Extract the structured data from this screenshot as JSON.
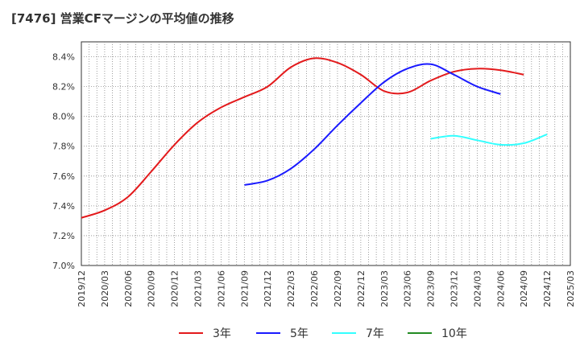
{
  "chart_data": {
    "type": "line",
    "title": "[7476]  営業CFマージンの平均値の推移",
    "xlabel": "",
    "ylabel": "",
    "ylim": [
      7.0,
      8.5
    ],
    "y_ticks": [
      "7.0%",
      "7.2%",
      "7.4%",
      "7.6%",
      "7.8%",
      "8.0%",
      "8.2%",
      "8.4%"
    ],
    "y_tick_values": [
      7.0,
      7.2,
      7.4,
      7.6,
      7.8,
      8.0,
      8.2,
      8.4
    ],
    "x_ticks": [
      "2019/12",
      "2020/03",
      "2020/06",
      "2020/09",
      "2020/12",
      "2021/03",
      "2021/06",
      "2021/09",
      "2021/12",
      "2022/03",
      "2022/06",
      "2022/09",
      "2022/12",
      "2023/03",
      "2023/06",
      "2023/09",
      "2023/12",
      "2024/03",
      "2024/06",
      "2024/09",
      "2024/12",
      "2025/03"
    ],
    "grid": true,
    "legend_position": "bottom",
    "series": [
      {
        "name": "3年",
        "color": "#e31a1c",
        "start_index": 0,
        "values": [
          7.32,
          7.37,
          7.46,
          7.63,
          7.81,
          7.96,
          8.06,
          8.13,
          8.2,
          8.33,
          8.39,
          8.36,
          8.28,
          8.17,
          8.16,
          8.24,
          8.3,
          8.32,
          8.31,
          8.28
        ]
      },
      {
        "name": "5年",
        "color": "#1a1aff",
        "start_index": 7,
        "values": [
          7.54,
          7.57,
          7.65,
          7.78,
          7.94,
          8.09,
          8.23,
          8.32,
          8.35,
          8.28,
          8.2,
          8.15
        ]
      },
      {
        "name": "7年",
        "color": "#33ffff",
        "start_index": 15,
        "values": [
          7.85,
          7.87,
          7.84,
          7.81,
          7.82,
          7.88
        ]
      },
      {
        "name": "10年",
        "color": "#228b22",
        "start_index": 0,
        "values": []
      }
    ]
  }
}
